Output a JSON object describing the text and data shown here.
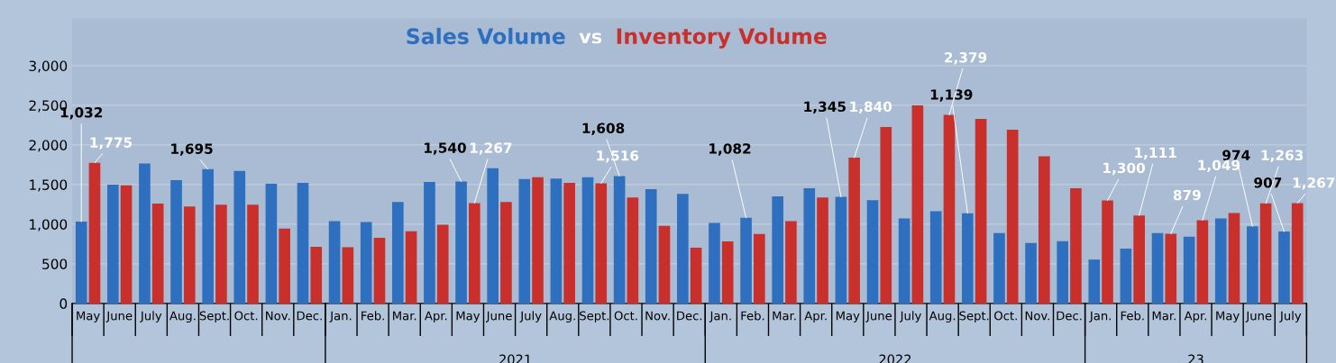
{
  "chart_data": {
    "type": "bar",
    "categories": [
      "May",
      "June",
      "July",
      "Aug.",
      "Sept.",
      "Oct.",
      "Nov.",
      "Dec.",
      "Jan.",
      "Feb.",
      "Mar.",
      "Apr.",
      "May",
      "June",
      "July",
      "Aug.",
      "Sept.",
      "Oct.",
      "Nov.",
      "Dec.",
      "Jan.",
      "Feb.",
      "Mar.",
      "Apr.",
      "May",
      "June",
      "July",
      "Aug.",
      "Sept.",
      "Oct.",
      "Nov.",
      "Dec.",
      "Jan.",
      "Feb.",
      "Mar.",
      "Apr.",
      "May",
      "June",
      "July"
    ],
    "series": [
      {
        "name": "Sales Volume",
        "color": "#2f6fbf",
        "values": [
          1032,
          1500,
          1765,
          1557,
          1695,
          1673,
          1511,
          1523,
          1038,
          1027,
          1281,
          1534,
          1540,
          1707,
          1569,
          1575,
          1592,
          1608,
          1442,
          1384,
          1015,
          1082,
          1350,
          1453,
          1345,
          1304,
          1073,
          1165,
          1139,
          888,
          763,
          785,
          554,
          692,
          888,
          842,
          1073,
          974,
          907
        ],
        "value_labels": [
          "1,032",
          null,
          null,
          null,
          "1,695",
          null,
          null,
          null,
          null,
          null,
          null,
          null,
          "1,540",
          null,
          null,
          null,
          null,
          "1,608",
          null,
          null,
          null,
          "1,082",
          null,
          null,
          "1,345",
          null,
          null,
          null,
          "1,139",
          null,
          null,
          null,
          null,
          null,
          null,
          null,
          null,
          "974",
          "907"
        ]
      },
      {
        "name": "Inventory Volume",
        "color": "#c9302c",
        "values": [
          1775,
          1490,
          1260,
          1223,
          1245,
          1245,
          946,
          715,
          710,
          830,
          911,
          992,
          1267,
          1281,
          1592,
          1523,
          1516,
          1338,
          980,
          704,
          784,
          877,
          1038,
          1338,
          1840,
          2227,
          2500,
          2379,
          2330,
          2192,
          1858,
          1453,
          1300,
          1111,
          879,
          1049,
          1142,
          1263,
          1267
        ],
        "value_labels": [
          "1,775",
          null,
          null,
          null,
          null,
          null,
          null,
          null,
          null,
          null,
          null,
          null,
          "1,267",
          null,
          null,
          null,
          "1,516",
          null,
          null,
          null,
          null,
          null,
          null,
          null,
          "1,840",
          null,
          null,
          "2,379",
          null,
          null,
          null,
          null,
          "1,300",
          "1,111",
          "879",
          "1,049",
          null,
          "1,263",
          "1,267"
        ]
      }
    ],
    "annotations": [
      "vs",
      "2021",
      "2022",
      "23"
    ],
    "ylim": [
      0,
      3600
    ],
    "yticks": [
      {
        "value": 0,
        "label": "0"
      },
      {
        "value": 500,
        "label": "500"
      },
      {
        "value": 1000,
        "label": "1,000"
      },
      {
        "value": 1500,
        "label": "1,500"
      },
      {
        "value": 2000,
        "label": "2,000"
      },
      {
        "value": 2500,
        "label": "2,500"
      },
      {
        "value": 3000,
        "label": "3,000"
      }
    ],
    "grid": "y",
    "legend": "top"
  }
}
